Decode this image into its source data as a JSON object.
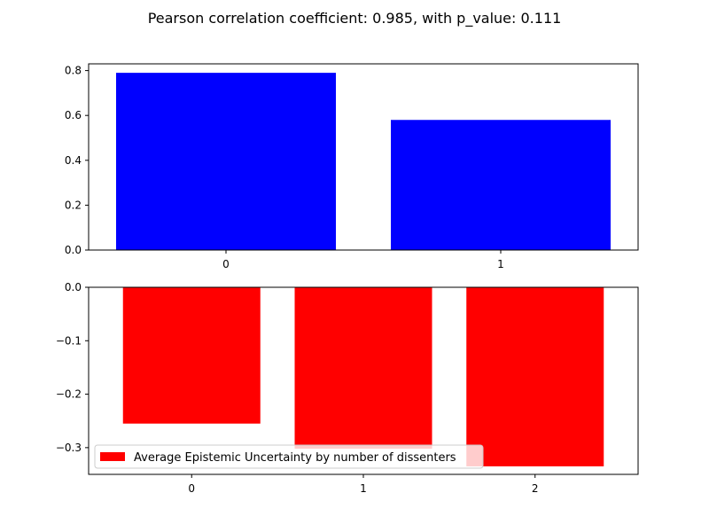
{
  "figure": {
    "suptitle": "Pearson correlation coefficient: 0.985, with p_value: 0.111"
  },
  "chart_data": [
    {
      "type": "bar",
      "categories": [
        "0",
        "1"
      ],
      "values": [
        0.79,
        0.58
      ],
      "color": "#0000ff",
      "title": "",
      "xlabel": "",
      "ylabel": "",
      "xlim": [
        -0.5,
        1.5
      ],
      "ylim": [
        0,
        0.83
      ],
      "yticks": [
        0.0,
        0.2,
        0.4,
        0.6,
        0.8
      ],
      "ytick_labels": [
        "0.0",
        "0.2",
        "0.4",
        "0.6",
        "0.8"
      ],
      "xticks": [
        0,
        1
      ],
      "xtick_labels": [
        "0",
        "1"
      ],
      "bar_width": 0.8,
      "grid": false,
      "legend": null
    },
    {
      "type": "bar",
      "categories": [
        "0",
        "1",
        "2"
      ],
      "values": [
        -0.255,
        -0.302,
        -0.335
      ],
      "color": "#ff0000",
      "title": "",
      "xlabel": "",
      "ylabel": "",
      "xlim": [
        -0.6,
        2.6
      ],
      "ylim": [
        -0.35,
        0
      ],
      "yticks": [
        0.0,
        -0.1,
        -0.2,
        -0.3
      ],
      "ytick_labels": [
        "0.0",
        "−0.1",
        "−0.2",
        "−0.3"
      ],
      "xticks": [
        0,
        1,
        2
      ],
      "xtick_labels": [
        "0",
        "1",
        "2"
      ],
      "bar_width": 0.8,
      "grid": false,
      "legend": {
        "placement": "lower-left",
        "entries": [
          {
            "label": "Average Epistemic Uncertainty by number of dissenters",
            "color": "#ff0000"
          }
        ]
      }
    }
  ]
}
